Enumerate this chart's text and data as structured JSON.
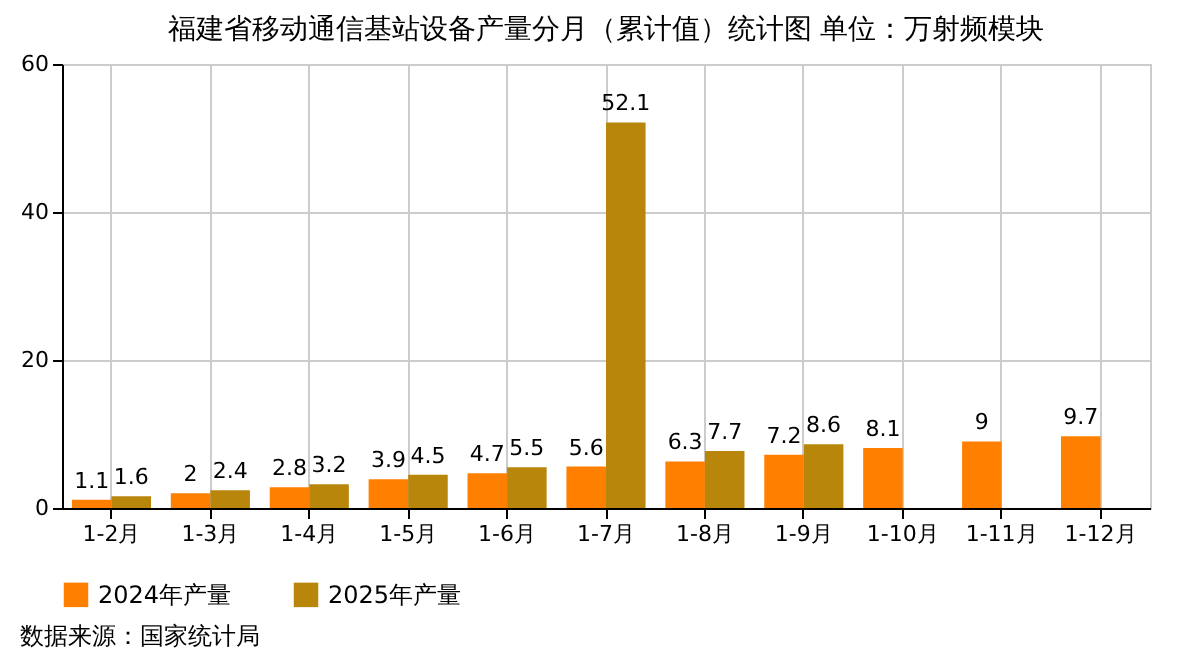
{
  "chart_data": {
    "type": "bar",
    "title": "福建省移动通信基站设备产量分月（累计值）统计图 单位：万射频模块",
    "categories": [
      "1-2月",
      "1-3月",
      "1-4月",
      "1-5月",
      "1-6月",
      "1-7月",
      "1-8月",
      "1-9月",
      "1-10月",
      "1-11月",
      "1-12月"
    ],
    "series": [
      {
        "name": "2024年产量",
        "color": "#ff8000",
        "values": [
          1.1,
          2,
          2.8,
          3.9,
          4.7,
          5.6,
          6.3,
          7.2,
          8.1,
          9,
          9.7
        ]
      },
      {
        "name": "2025年产量",
        "color": "#b8860b",
        "values": [
          1.6,
          2.4,
          3.2,
          4.5,
          5.5,
          52.1,
          7.7,
          8.6,
          null,
          null,
          null
        ]
      }
    ],
    "ylim": [
      0,
      60
    ],
    "yticks": [
      0,
      20,
      40,
      60
    ],
    "grid": true,
    "legend": "bottom",
    "data_labels": true,
    "annotations": [
      "数据来源：国家统计局"
    ]
  }
}
